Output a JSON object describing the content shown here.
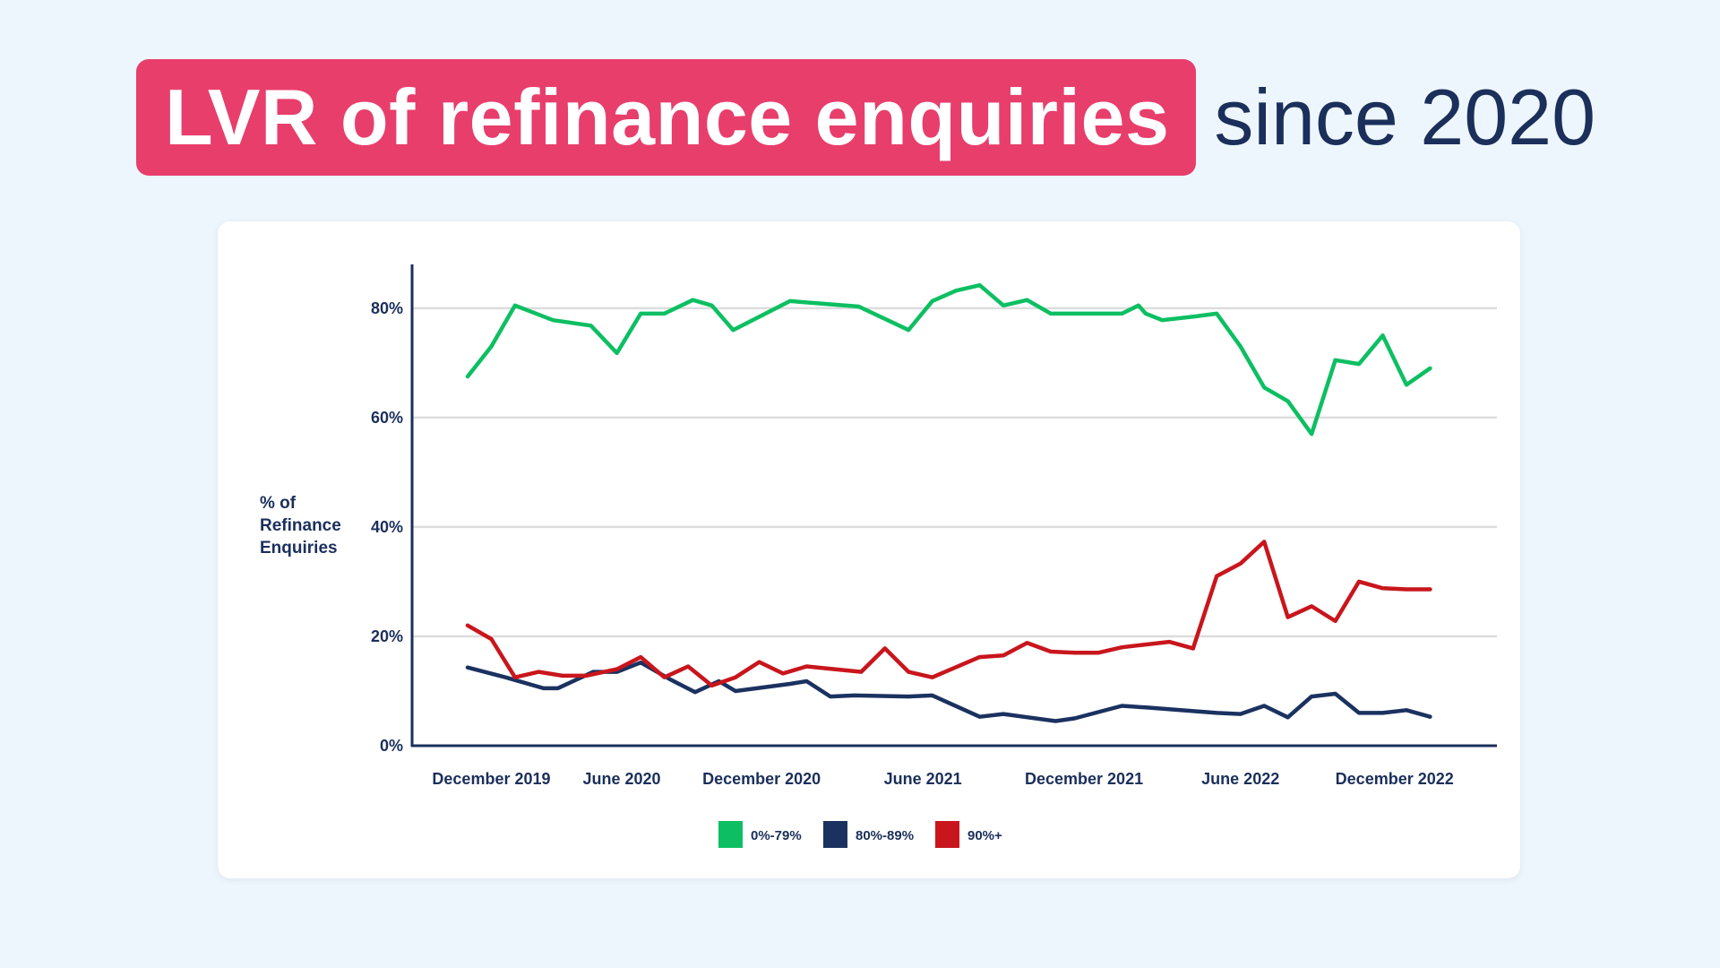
{
  "title": {
    "highlight": "LVR of refinance enquiries",
    "rest": "since 2020"
  },
  "colors": {
    "background": "#eef6fd",
    "highlight": "#e83e6c",
    "text": "#1b2f5b",
    "grid": "#dddddd"
  },
  "chart_data": {
    "type": "line",
    "ylabel": "% of Refinance Enquiries",
    "ylabel_lines": [
      "% of",
      "Refinance",
      "Enquiries"
    ],
    "ylim": [
      0,
      88
    ],
    "yticks": [
      0,
      20,
      40,
      60,
      80
    ],
    "ytick_labels": [
      "0%",
      "20%",
      "40%",
      "60%",
      "80%"
    ],
    "xlim": [
      0,
      41
    ],
    "grid": true,
    "legend_position": "bottom-center",
    "x_tick_labels": [
      {
        "label": "December 2019",
        "x": 1
      },
      {
        "label": "June 2020",
        "x": 6.5
      },
      {
        "label": "December 2020",
        "x": 12.4
      },
      {
        "label": "June 2021",
        "x": 19.2
      },
      {
        "label": "December 2021",
        "x": 26
      },
      {
        "label": "June 2022",
        "x": 32.6
      },
      {
        "label": "December 2022",
        "x": 39.1
      }
    ],
    "series": [
      {
        "name": "0%-79%",
        "color": "#0dbf62",
        "x": [
          0,
          1,
          2,
          3.6,
          5.2,
          6.3,
          7.3,
          8.3,
          9.5,
          10.3,
          11.2,
          13.6,
          16.5,
          18.6,
          19.6,
          20.6,
          21.6,
          22.6,
          23.6,
          24.6,
          25.6,
          27.6,
          28.3,
          28.6,
          29.3,
          30.7,
          31.6,
          32.6,
          33.6,
          34.6,
          35.6,
          36.6,
          37.6,
          38.6,
          39.6,
          40.6
        ],
        "y": [
          67.5,
          73,
          80.5,
          77.8,
          76.8,
          71.8,
          79,
          79,
          81.5,
          80.5,
          76,
          81.3,
          80.3,
          76,
          81.3,
          83.2,
          84.2,
          80.5,
          81.5,
          79,
          79,
          79,
          80.5,
          79,
          77.8,
          78.5,
          79,
          73,
          65.5,
          63,
          57,
          70.5,
          69.8,
          75,
          66,
          69
        ]
      },
      {
        "name": "80%-89%",
        "color": "#1b3260",
        "x": [
          0,
          1.6,
          3.2,
          3.8,
          5.3,
          6.3,
          7.3,
          8.6,
          9.6,
          10.6,
          11.3,
          13.6,
          14.3,
          15.3,
          16.3,
          18.6,
          19.6,
          21.6,
          22.6,
          24.8,
          25.6,
          27.6,
          28.6,
          31.6,
          32.6,
          33.6,
          34.6,
          35.6,
          36.6,
          37.6,
          38.6,
          39.6,
          40.6
        ],
        "y": [
          14.3,
          12.5,
          10.5,
          10.5,
          13.5,
          13.5,
          15.2,
          12,
          9.8,
          11.8,
          10,
          11.3,
          11.8,
          9,
          9.2,
          9,
          9.2,
          5.3,
          5.8,
          4.5,
          5,
          7.3,
          7,
          6,
          5.8,
          7.3,
          5.2,
          9,
          9.5,
          6,
          6,
          6.5,
          5.3
        ]
      },
      {
        "name": "90%+",
        "color": "#c8161c",
        "x": [
          0,
          1,
          2,
          3,
          4,
          5,
          6.3,
          7.3,
          8.3,
          9.3,
          10.3,
          11.3,
          12.3,
          13.3,
          14.3,
          16.6,
          17.6,
          18.6,
          19.6,
          21.6,
          22.6,
          23.6,
          24.6,
          25.6,
          26.6,
          27.6,
          28.6,
          29.6,
          30.6,
          31.6,
          32.6,
          33.6,
          34.6,
          35.6,
          36.6,
          37.6,
          38.6,
          39.6,
          40.6
        ],
        "y": [
          22,
          19.5,
          12.5,
          13.5,
          12.8,
          12.8,
          14,
          16.2,
          12.5,
          14.5,
          11,
          12.5,
          15.3,
          13.2,
          14.5,
          13.5,
          17.8,
          13.5,
          12.5,
          16.2,
          16.5,
          18.8,
          17.2,
          17,
          17,
          18,
          18.5,
          19,
          17.8,
          31,
          33.3,
          37.3,
          23.5,
          25.5,
          22.8,
          30,
          28.8,
          28.6,
          28.6
        ]
      }
    ]
  }
}
